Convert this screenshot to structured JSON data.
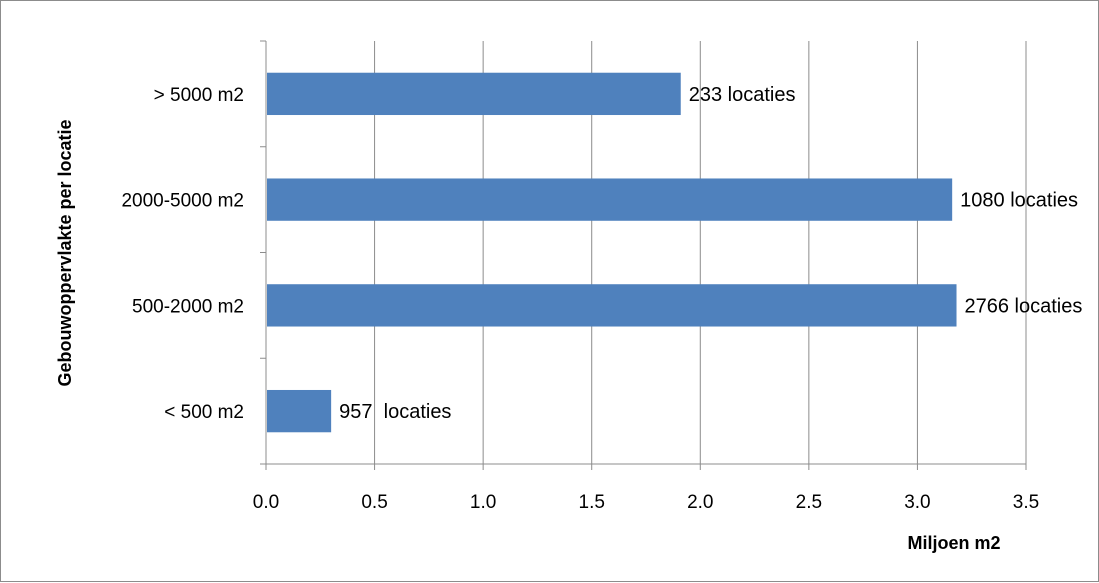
{
  "chart_data": {
    "type": "bar",
    "orientation": "horizontal",
    "title": "",
    "xlabel": "Miljoen m2",
    "ylabel": "Gebouwoppervlakte per locatie",
    "categories": [
      "< 500 m2",
      "500-2000 m2",
      "2000-5000 m2",
      "> 5000 m2"
    ],
    "values": [
      0.3,
      3.18,
      3.16,
      1.91
    ],
    "data_labels": [
      "957  locaties",
      "2766 locaties",
      "1080 locaties",
      "233 locaties"
    ],
    "xlim": [
      0,
      3.5
    ],
    "xticks": [
      "0.0",
      "0.5",
      "1.0",
      "1.5",
      "2.0",
      "2.5",
      "3.0",
      "3.5"
    ],
    "grid": "vertical",
    "legend": "none",
    "bar_color": "#4f81bd"
  }
}
